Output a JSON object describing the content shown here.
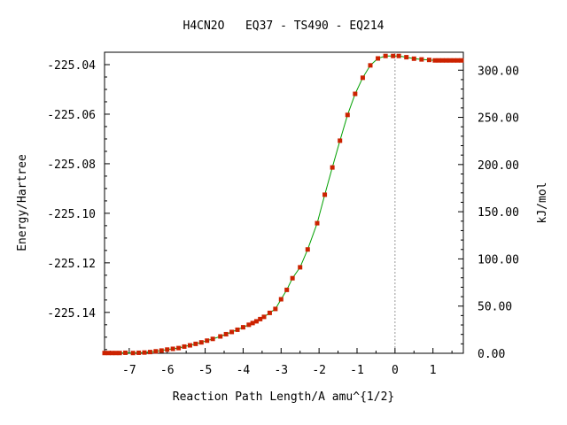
{
  "chart_data": {
    "type": "line",
    "title": "H4CN2O   EQ37 - TS490 - EQ214",
    "xlabel": "Reaction Path Length/A amu^{1/2}",
    "ylabel": "Energy/Hartree",
    "y2label": "kJ/mol",
    "xlim": [
      -7.65,
      1.8
    ],
    "ylim": [
      -225.1565,
      -225.035
    ],
    "y2lim": [
      0,
      319.0
    ],
    "x_ticks": [
      -7,
      -6,
      -5,
      -4,
      -3,
      -2,
      -1,
      0,
      1
    ],
    "x_tick_labels": [
      "-7",
      "-6",
      "-5",
      "-4",
      "-3",
      "-2",
      "-1",
      "0",
      "1"
    ],
    "y_ticks": [
      -225.04,
      -225.06,
      -225.08,
      -225.1,
      -225.12,
      -225.14
    ],
    "y_tick_labels": [
      "-225.04",
      "-225.06",
      "-225.08",
      "-225.10",
      "-225.12",
      "-225.14"
    ],
    "y2_ticks": [
      0,
      50,
      100,
      150,
      200,
      250,
      300
    ],
    "y2_tick_labels": [
      "0.00",
      "50.00",
      "100.00",
      "150.00",
      "200.00",
      "250.00",
      "300.00"
    ],
    "grid": false,
    "reference_line_x": 0,
    "line_color": "#00a000",
    "marker_color": "#cc2200",
    "series": [
      {
        "x": [
          -7.65,
          -7.55,
          -7.45,
          -7.35,
          -7.25,
          -7.1,
          -6.9,
          -6.75,
          -6.6,
          -6.45,
          -6.3,
          -6.15,
          -6.0,
          -5.85,
          -5.7,
          -5.55,
          -5.4,
          -5.25,
          -5.1,
          -4.95,
          -4.8,
          -4.6,
          -4.45,
          -4.3,
          -4.15,
          -4.0,
          -3.85,
          -3.75,
          -3.65,
          -3.55,
          -3.45,
          -3.3,
          -3.15,
          -3.0,
          -2.85,
          -2.7,
          -2.5,
          -2.3,
          -2.05,
          -1.85,
          -1.65,
          -1.45,
          -1.25,
          -1.05,
          -0.85,
          -0.65,
          -0.45,
          -0.25,
          -0.05,
          0.1,
          0.3,
          0.5,
          0.7,
          0.9,
          1.05,
          1.15,
          1.25,
          1.35,
          1.45,
          1.55,
          1.65,
          1.75
        ],
        "y": [
          -225.1564,
          -225.1564,
          -225.1564,
          -225.1564,
          -225.1564,
          -225.1563,
          -225.1564,
          -225.1563,
          -225.1562,
          -225.156,
          -225.1557,
          -225.1554,
          -225.155,
          -225.1547,
          -225.1544,
          -225.1538,
          -225.1533,
          -225.1527,
          -225.1521,
          -225.1514,
          -225.1507,
          -225.1497,
          -225.1488,
          -225.1479,
          -225.147,
          -225.146,
          -225.145,
          -225.1443,
          -225.1436,
          -225.1427,
          -225.1418,
          -225.1402,
          -225.1386,
          -225.1347,
          -225.1309,
          -225.1262,
          -225.1218,
          -225.1146,
          -225.104,
          -225.0925,
          -225.0815,
          -225.0707,
          -225.0603,
          -225.0518,
          -225.0453,
          -225.0403,
          -225.0375,
          -225.0365,
          -225.0365,
          -225.0365,
          -225.037,
          -225.0376,
          -225.0379,
          -225.0381,
          -225.0383,
          -225.0383,
          -225.0383,
          -225.0383,
          -225.0383,
          -225.0383,
          -225.0383,
          -225.0383
        ]
      }
    ]
  }
}
